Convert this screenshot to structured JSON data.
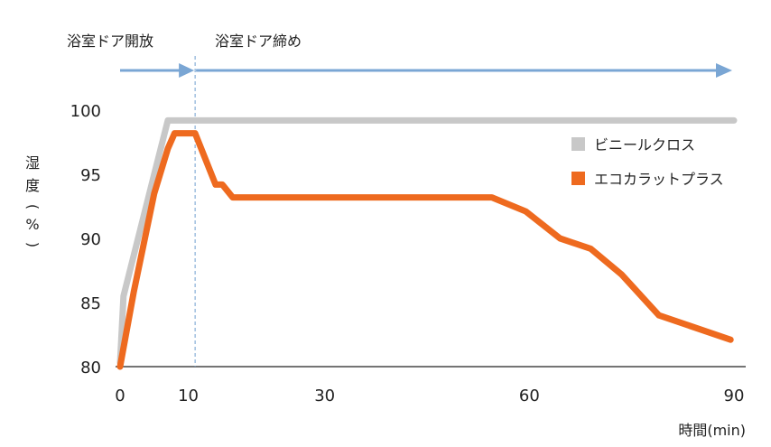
{
  "chart_data": {
    "type": "line",
    "title": "",
    "xlabel": "時間(min)",
    "ylabel": "湿度(%)",
    "xlim": [
      0,
      90
    ],
    "ylim": [
      80,
      100
    ],
    "x_ticks": [
      0,
      10,
      30,
      60,
      90
    ],
    "y_ticks": [
      80,
      85,
      90,
      95,
      100
    ],
    "grid": false,
    "legend_position": "right",
    "annotations": {
      "phase1_label": "浴室ドア開放",
      "phase2_label": "浴室ドア締め",
      "door_close_time": 11
    },
    "series": [
      {
        "name": "ビニールクロス",
        "color": "#c8c8c8",
        "points": [
          [
            0,
            80.3
          ],
          [
            0.5,
            85.5
          ],
          [
            5,
            95
          ],
          [
            7,
            99.2
          ],
          [
            90,
            99.2
          ]
        ]
      },
      {
        "name": "エコカラットプラス",
        "color": "#ee6a1f",
        "points": [
          [
            0,
            80
          ],
          [
            2,
            85.8
          ],
          [
            5,
            93.5
          ],
          [
            7,
            97
          ],
          [
            8,
            98.2
          ],
          [
            11,
            98.2
          ],
          [
            14,
            94.2
          ],
          [
            15,
            94.2
          ],
          [
            16.5,
            93.2
          ],
          [
            54.5,
            93.2
          ],
          [
            59.5,
            92.1
          ],
          [
            64.5,
            90
          ],
          [
            69,
            89.2
          ],
          [
            73.5,
            87.2
          ],
          [
            79,
            84
          ],
          [
            89.5,
            82.1
          ]
        ]
      }
    ]
  },
  "colors": {
    "arrow": "#7aa6d4",
    "axis": "#222222",
    "divider": "#6f9fd0"
  }
}
